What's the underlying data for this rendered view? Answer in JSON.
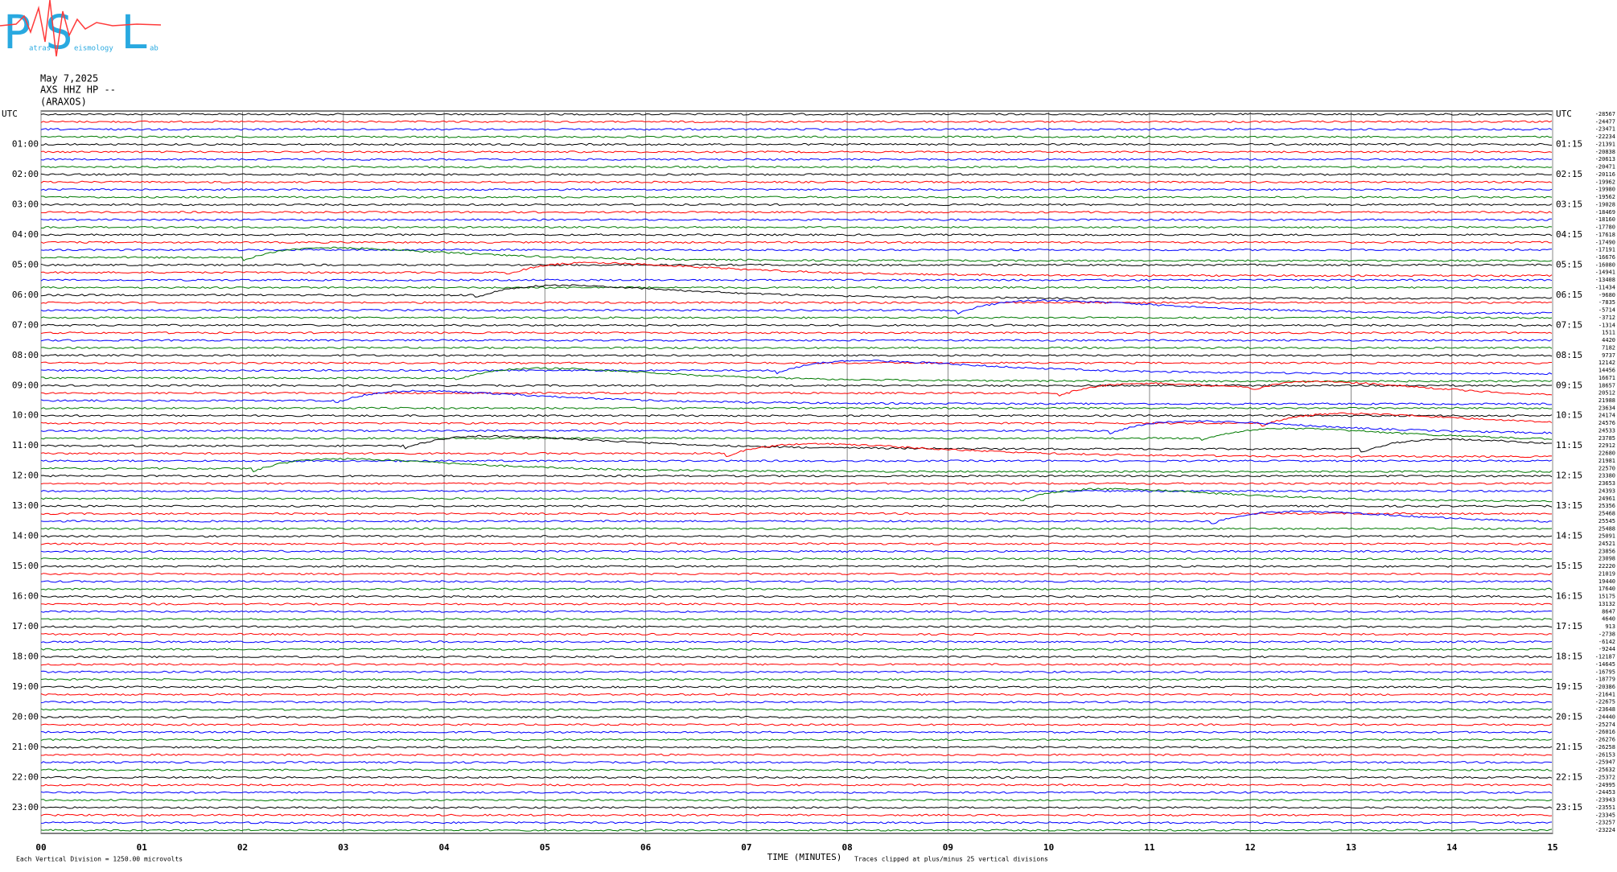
{
  "header": {
    "logo": {
      "big": [
        "P",
        "S",
        "L"
      ],
      "small": [
        "atras",
        "eismology",
        "ab"
      ]
    },
    "date": "May 7,2025",
    "station": "AXS HHZ HP --",
    "site": "(ARAXOS)"
  },
  "trace_colors": [
    "#000000",
    "#ff0000",
    "#0000ff",
    "#007a00"
  ],
  "left_labels": [
    "UTC",
    "01:00",
    "02:00",
    "03:00",
    "04:00",
    "05:00",
    "06:00",
    "07:00",
    "08:00",
    "09:00",
    "10:00",
    "11:00",
    "12:00",
    "13:00",
    "14:00",
    "15:00",
    "16:00",
    "17:00",
    "18:00",
    "19:00",
    "20:00",
    "21:00",
    "22:00",
    "23:00"
  ],
  "right_labels": [
    "UTC",
    "01:15",
    "02:15",
    "03:15",
    "04:15",
    "05:15",
    "06:15",
    "07:15",
    "08:15",
    "09:15",
    "10:15",
    "11:15",
    "12:15",
    "13:15",
    "14:15",
    "15:15",
    "16:15",
    "17:15",
    "18:15",
    "19:15",
    "20:15",
    "21:15",
    "22:15",
    "23:15"
  ],
  "trace_offsets": [
    -28567,
    -24477,
    -23471,
    -22234,
    -21391,
    -20838,
    -20613,
    -20471,
    -20116,
    -19962,
    -19980,
    -19562,
    -19028,
    -18469,
    -18160,
    -17780,
    -17618,
    -17490,
    -17191,
    -16676,
    -16080,
    -14941,
    -13408,
    -11434,
    -9680,
    -7835,
    -5714,
    -3712,
    -1314,
    1511,
    4420,
    7182,
    9737,
    12142,
    14456,
    16671,
    18657,
    20512,
    21988,
    23634,
    24174,
    24576,
    24533,
    23785,
    22912,
    22680,
    21981,
    22570,
    23380,
    23653,
    24393,
    24961,
    25356,
    25468,
    25545,
    25488,
    25091,
    24521,
    23856,
    23098,
    22220,
    21019,
    19440,
    17640,
    15175,
    13132,
    8647,
    4640,
    913,
    -2738,
    -6142,
    -9244,
    -12187,
    -14645,
    -16795,
    -18779,
    -20386,
    -21641,
    -22675,
    -23648,
    -24440,
    -25274,
    -26016,
    -26276,
    -26258,
    -26153,
    -25947,
    -25632,
    -25372,
    -24995,
    -24453,
    -23943,
    -23551,
    -23345,
    -23257,
    -23224
  ],
  "x_axis": {
    "ticks": [
      "00",
      "01",
      "02",
      "03",
      "04",
      "05",
      "06",
      "07",
      "08",
      "09",
      "10",
      "11",
      "12",
      "13",
      "14",
      "15"
    ],
    "title": "TIME (MINUTES)"
  },
  "footer": {
    "scale_note": "Each Vertical Division = 1250.00 microvolts",
    "clip_note": "Traces clipped at plus/minus 25 vertical divisions"
  }
}
